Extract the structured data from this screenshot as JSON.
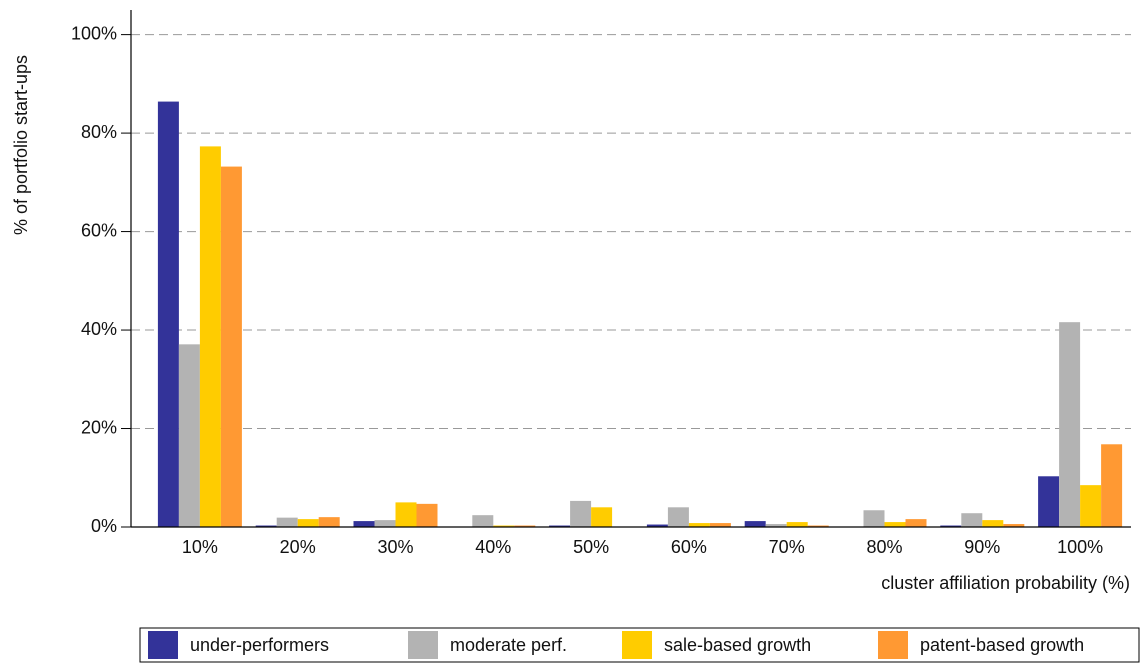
{
  "chart_data": {
    "type": "bar",
    "y_label": "% of portfolio start-ups",
    "x_label": "cluster affiliation probability (%)",
    "categories": [
      "10%",
      "20%",
      "30%",
      "40%",
      "50%",
      "60%",
      "70%",
      "80%",
      "90%",
      "100%"
    ],
    "series": [
      {
        "name": "under-performers",
        "color": "#333399",
        "values": [
          86.4,
          0.3,
          1.2,
          0,
          0.3,
          0.5,
          1.2,
          0,
          0.3,
          10.3
        ]
      },
      {
        "name": "moderate perf.",
        "color": "#b3b3b3",
        "values": [
          37.1,
          1.9,
          1.4,
          2.4,
          5.3,
          4.0,
          0.6,
          3.4,
          2.8,
          41.6
        ]
      },
      {
        "name": "sale-based growth",
        "color": "#ffcc00",
        "values": [
          77.3,
          1.6,
          5.0,
          0.3,
          4.0,
          0.8,
          1.0,
          1.0,
          1.4,
          8.5
        ]
      },
      {
        "name": "patent-based growth",
        "color": "#ff9933",
        "values": [
          73.2,
          2.0,
          4.7,
          0.3,
          0.1,
          0.8,
          0.3,
          1.6,
          0.6,
          16.8
        ]
      }
    ],
    "ylim": [
      0,
      105
    ],
    "yticks": [
      {
        "value": 0,
        "label": "0%"
      },
      {
        "value": 20,
        "label": "20%"
      },
      {
        "value": 40,
        "label": "40%"
      },
      {
        "value": 60,
        "label": "60%"
      },
      {
        "value": 80,
        "label": "80%"
      },
      {
        "value": 100,
        "label": "100%"
      }
    ],
    "grid": true,
    "legend": "bottom"
  }
}
